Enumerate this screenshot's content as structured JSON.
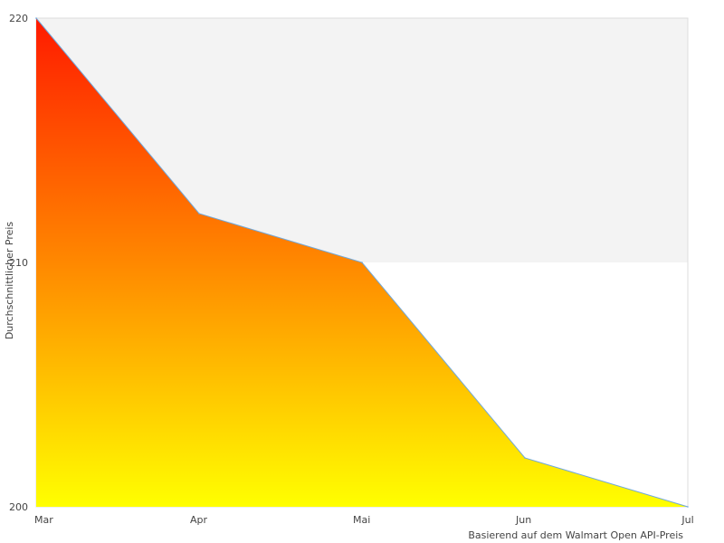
{
  "chart_data": {
    "type": "area",
    "categories": [
      "Mar",
      "Apr",
      "Mai",
      "Jun",
      "Jul"
    ],
    "series": [
      {
        "values": [
          220,
          212,
          210,
          202,
          200
        ]
      }
    ],
    "yticks": [
      "200",
      "210",
      "220"
    ],
    "ylim": [
      200,
      220
    ],
    "ylabel": "Durchschnittlicher Preis",
    "xlabel": "Basierend auf dem Walmart Open API-Preis",
    "grid": false,
    "bands": [
      {
        "from": 210,
        "to": 220,
        "color": "#f3f3f3"
      }
    ],
    "gradient": {
      "top": "#ff1a00",
      "middle": "#ff8800",
      "bottom": "#ffff00"
    },
    "line_color": "#6fa8dc",
    "border_color": "#dddddd"
  }
}
